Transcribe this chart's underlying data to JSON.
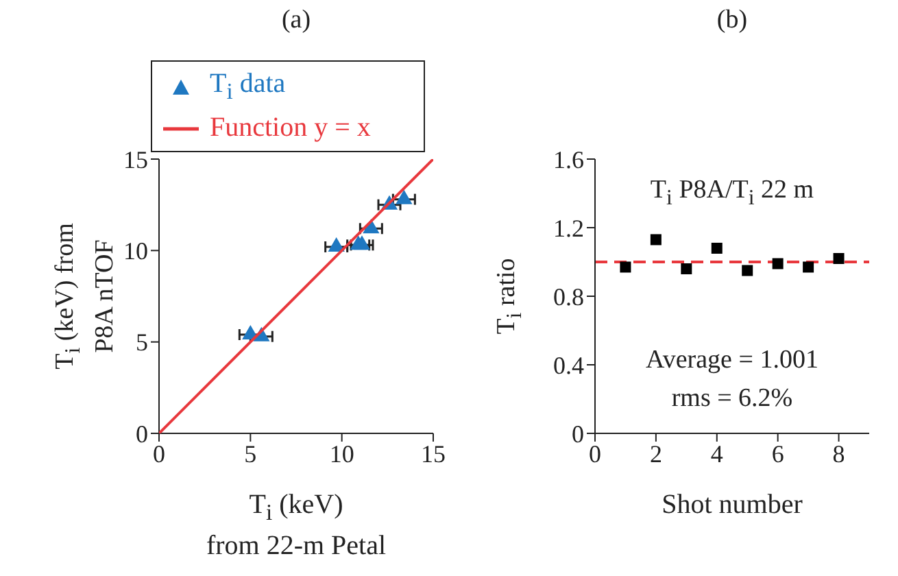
{
  "chart_data": [
    {
      "type": "scatter",
      "title": "(a)",
      "xlabel": "T$_{i}$ (keV)\nfrom 22-m Petal",
      "ylabel": "T$_{i}$ (keV) from\nP8A nTOF",
      "x": [
        5.0,
        5.6,
        9.7,
        10.9,
        11.1,
        11.6,
        12.6,
        13.4
      ],
      "series": [
        {
          "name": "T$_{i}$ data",
          "type": "scatter",
          "color": "#1f78c1",
          "marker": "triangle",
          "values": [
            5.4,
            5.3,
            10.2,
            10.3,
            10.3,
            11.2,
            12.5,
            12.8
          ],
          "xerrors": [
            0.6,
            0.6,
            0.6,
            0.6,
            0.6,
            0.6,
            0.6,
            0.6
          ]
        },
        {
          "name": "Function y = x",
          "type": "line",
          "color": "#e8383d",
          "x": [
            0,
            15
          ],
          "values": [
            0,
            15
          ]
        }
      ],
      "xlim": [
        0,
        15
      ],
      "ylim": [
        0,
        15
      ],
      "xticks": [
        0,
        5,
        10,
        15
      ],
      "yticks": [
        0,
        5,
        10,
        15
      ],
      "grid": false,
      "legend": "top"
    },
    {
      "type": "scatter",
      "title": "(b)",
      "xlabel": "Shot number",
      "ylabel": "T$_{i}$ ratio",
      "x": [
        1,
        2,
        3,
        4,
        5,
        6,
        7,
        8
      ],
      "series": [
        {
          "type": "scatter",
          "color": "#000000",
          "marker": "square",
          "values": [
            0.97,
            1.13,
            0.96,
            1.08,
            0.95,
            0.99,
            0.97,
            1.02
          ]
        }
      ],
      "xlim": [
        0,
        9
      ],
      "ylim": [
        0,
        1.6
      ],
      "xticks": [
        0,
        2,
        4,
        6,
        8
      ],
      "yticks": [
        0,
        0.4,
        0.8,
        1.2,
        1.6
      ],
      "grid": false,
      "legend": false,
      "ref_lines": [
        {
          "axis": "y",
          "value": 1.0,
          "color": "#e8383d",
          "line_style": "dashed"
        }
      ],
      "annotations": [
        "T$_{i}$ P8A/T$_{i}$ 22 m",
        "Average = 1.001",
        "rms = 6.2%"
      ]
    }
  ]
}
